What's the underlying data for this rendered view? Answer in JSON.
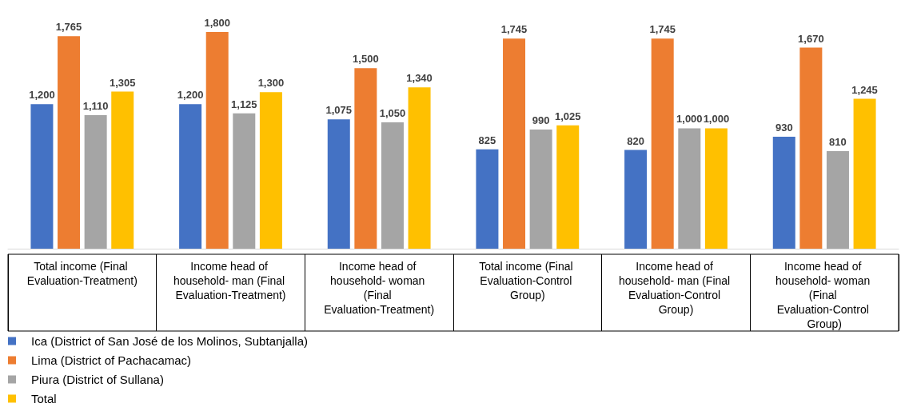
{
  "chart_data": {
    "type": "bar",
    "categories": [
      "Total income (Final Evaluation-Treatment)",
      "Income head of household- man (Final Evaluation-Treatment)",
      "Income head of household- woman (Final Evaluation-Treatment)",
      "Total income (Final Evaluation-Control Group)",
      "Income head of household- man (Final Evaluation-Control Group)",
      "Income head of household- woman (Final Evaluation-Control Group)"
    ],
    "series": [
      {
        "name": "Ica (District of San José de los Molinos, Subtanjalla)",
        "color": "#4472c4",
        "values": [
          1200,
          1200,
          1075,
          825,
          820,
          930
        ],
        "value_labels": [
          "1,200",
          "1,200",
          "1,075",
          "825",
          "820",
          "930"
        ]
      },
      {
        "name": "Lima (District of Pachacamac)",
        "color": "#ed7d31",
        "values": [
          1765,
          1800,
          1500,
          1745,
          1745,
          1670
        ],
        "value_labels": [
          "1,765",
          "1,800",
          "1,500",
          "1,745",
          "1,745",
          "1,670"
        ]
      },
      {
        "name": "Piura (District of Sullana)",
        "color": "#a5a5a5",
        "values": [
          1110,
          1125,
          1050,
          990,
          1000,
          810
        ],
        "value_labels": [
          "1,110",
          "1,125",
          "1,050",
          "990",
          "1,000",
          "810"
        ]
      },
      {
        "name": "Total",
        "color": "#ffc000",
        "values": [
          1305,
          1300,
          1340,
          1025,
          1000,
          1245
        ],
        "value_labels": [
          "1,305",
          "1,300",
          "1,340",
          "1,025",
          "1,000",
          "1,245"
        ]
      }
    ],
    "legend": "bottom left",
    "grid": false
  }
}
